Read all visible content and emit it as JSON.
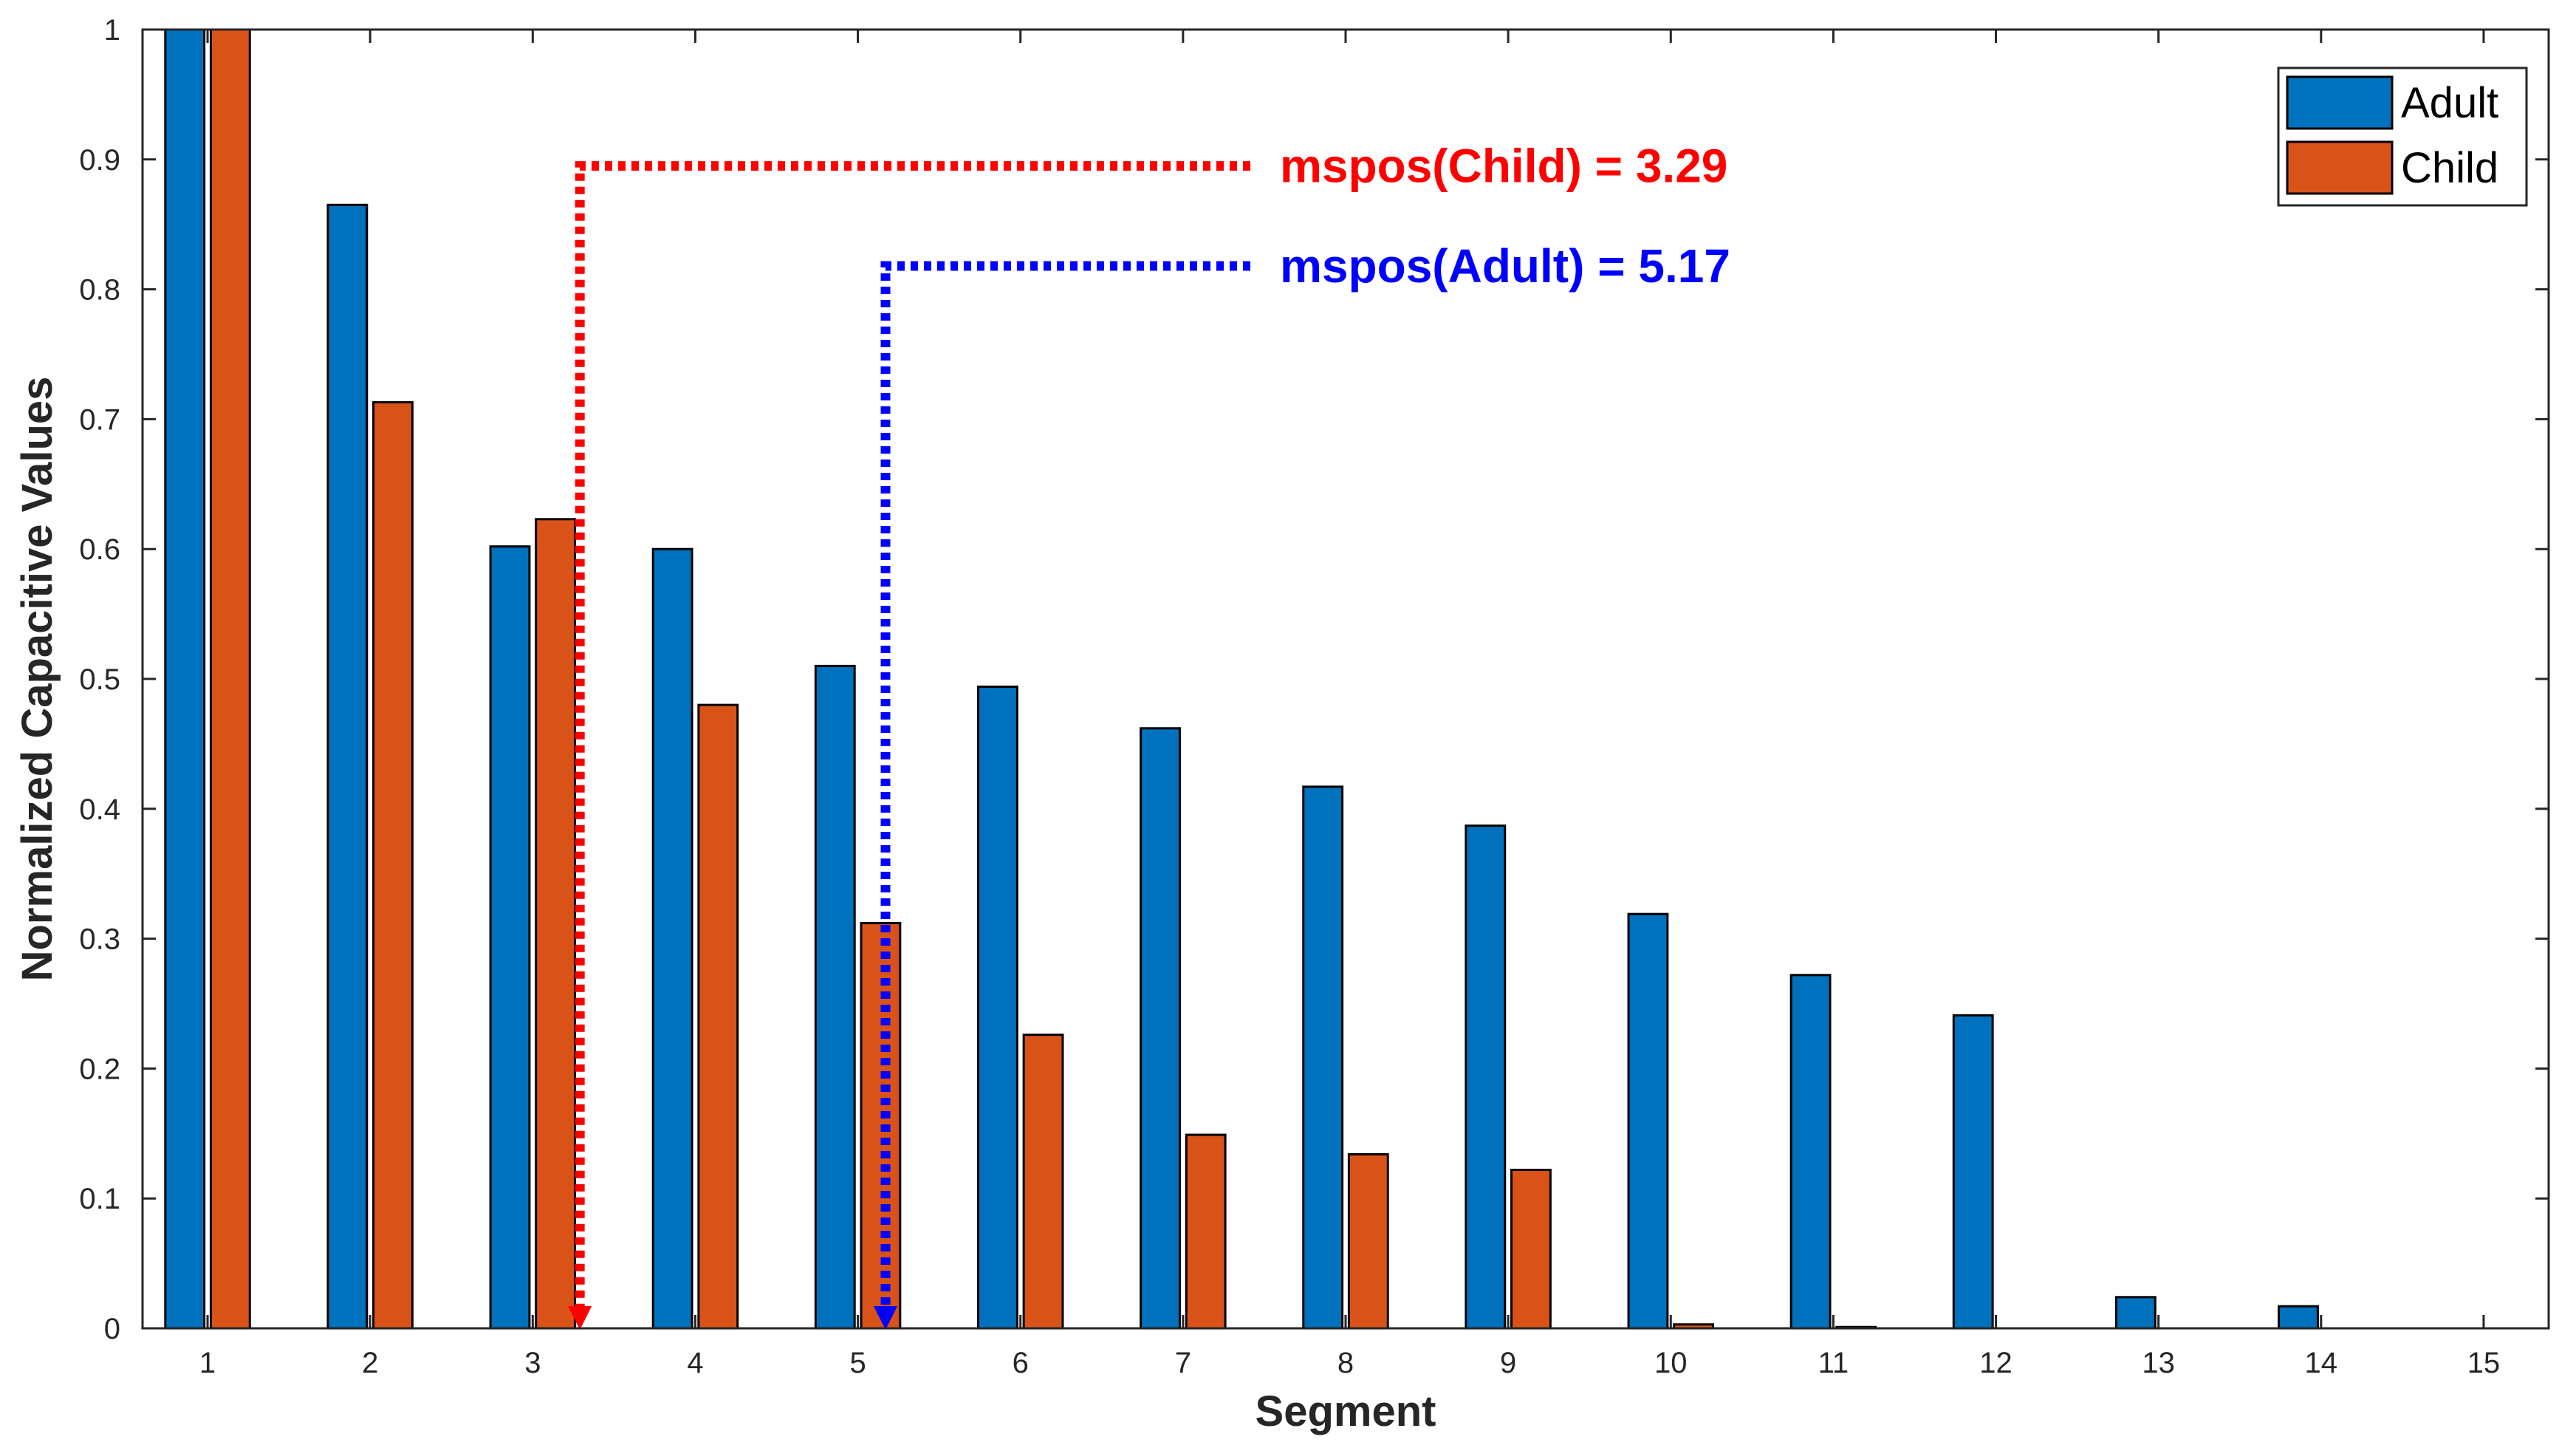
{
  "chart_data": {
    "type": "bar",
    "title": "",
    "xlabel": "Segment",
    "ylabel": "Normalized Capacitive Values",
    "categories": [
      "1",
      "2",
      "3",
      "4",
      "5",
      "6",
      "7",
      "8",
      "9",
      "10",
      "11",
      "12",
      "13",
      "14",
      "15"
    ],
    "ylim": [
      0,
      1
    ],
    "yticks": [
      0,
      0.1,
      0.2,
      0.3,
      0.4,
      0.5,
      0.6,
      0.7,
      0.8,
      0.9,
      1
    ],
    "ytick_labels": [
      "0",
      "0.1",
      "0.2",
      "0.3",
      "0.4",
      "0.5",
      "0.6",
      "0.7",
      "0.8",
      "0.9",
      "1"
    ],
    "grid": false,
    "legend_position": "top-right",
    "series": [
      {
        "name": "Adult",
        "color": "#0072BD",
        "values": [
          1.0,
          0.865,
          0.602,
          0.6,
          0.51,
          0.494,
          0.462,
          0.417,
          0.387,
          0.319,
          0.272,
          0.241,
          0.024,
          0.017,
          0
        ]
      },
      {
        "name": "Child",
        "color": "#D95319",
        "values": [
          1.0,
          0.713,
          0.623,
          0.48,
          0.312,
          0.226,
          0.149,
          0.134,
          0.122,
          0.003,
          0.001,
          0,
          0,
          0,
          0
        ]
      }
    ],
    "annotations": [
      {
        "text": "mspos(Child) = 3.29",
        "x": 3.29,
        "y_level": 0.895,
        "color": "#FF0000"
      },
      {
        "text": "mspos(Adult) = 5.17",
        "x": 5.17,
        "y_level": 0.818,
        "color": "#0000FF"
      }
    ]
  }
}
